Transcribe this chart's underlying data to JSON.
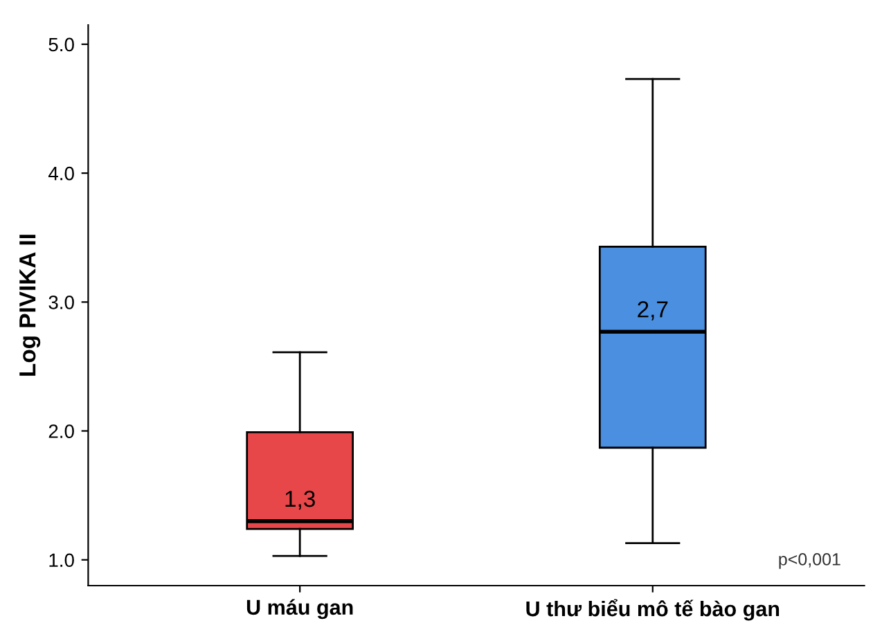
{
  "chart_data": {
    "type": "box",
    "ylabel": "Log PIVIKA II",
    "categories": [
      "U máu gan",
      "U thư biểu mô tế bào gan"
    ],
    "series": [
      {
        "colors": [
          "#e8474a",
          "#4a8fe0"
        ],
        "boxes": [
          {
            "low": 1.03,
            "q1": 1.24,
            "median": 1.3,
            "q3": 1.99,
            "high": 2.61
          },
          {
            "low": 1.13,
            "q1": 1.87,
            "median": 2.77,
            "q3": 3.43,
            "high": 4.73
          }
        ]
      }
    ],
    "ylim": [
      0.8,
      5.15
    ],
    "yticks": [
      {
        "value": 1,
        "label": "1.0"
      },
      {
        "value": 2,
        "label": "2.0"
      },
      {
        "value": 3,
        "label": "3.0"
      },
      {
        "value": 4,
        "label": "4.0"
      },
      {
        "value": 5,
        "label": "5.0"
      }
    ],
    "annotations": [
      {
        "text": "1,3",
        "x": "U máu gan",
        "y": 1.3
      },
      {
        "text": "2,7",
        "x": "U thư biểu mô tế bào gan",
        "y": 2.77
      },
      "p<0,001"
    ],
    "grid": false
  }
}
